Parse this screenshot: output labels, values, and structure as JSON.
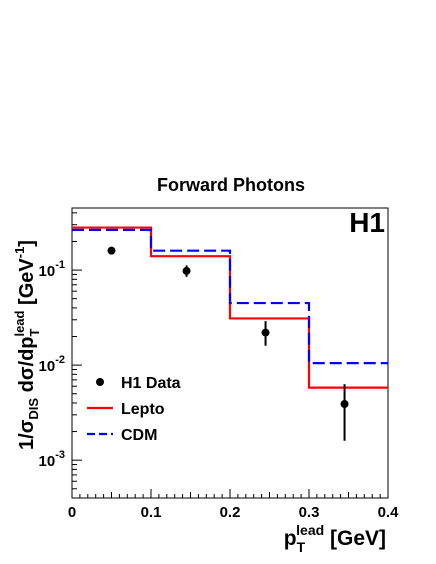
{
  "chart_data": {
    "type": "histogram",
    "title": "Forward Photons",
    "experiment_label": "H1",
    "xlabel": {
      "main": "p",
      "sub": "T",
      "sup": "lead",
      "unit": " [GeV]"
    },
    "ylabel": {
      "pre": "1/σ",
      "pre_sub": "DIS",
      "mid": " dσ/dp",
      "sub": "T",
      "sup": "lead",
      "unit_pre": " [GeV",
      "unit_sup": "-1",
      "unit_post": "]"
    },
    "xlim": [
      0,
      0.4
    ],
    "ylim": [
      0.0004,
      0.45
    ],
    "yscale": "log",
    "x_ticks": [
      "0",
      "0.1",
      "0.2",
      "0.3",
      "0.4"
    ],
    "y_ticks": [
      {
        "value": 0.1,
        "base": "10",
        "exp": "-1"
      },
      {
        "value": 0.01,
        "base": "10",
        "exp": "-2"
      },
      {
        "value": 0.001,
        "base": "10",
        "exp": "-3"
      }
    ],
    "bin_edges": [
      0,
      0.1,
      0.2,
      0.3,
      0.4
    ],
    "series": [
      {
        "name": "H1 Data",
        "style": "points",
        "color": "#000000",
        "x": [
          0.05,
          0.145,
          0.245,
          0.345
        ],
        "y": [
          0.16,
          0.098,
          0.022,
          0.0039
        ],
        "yerr_low": [
          0.15,
          0.085,
          0.016,
          0.0016
        ],
        "yerr_high": [
          0.17,
          0.112,
          0.029,
          0.0063
        ]
      },
      {
        "name": "Lepto",
        "style": "solid-step",
        "color": "#ff0000",
        "values": [
          0.28,
          0.14,
          0.031,
          0.0058
        ]
      },
      {
        "name": "CDM",
        "style": "dashed-step",
        "color": "#0000ff",
        "values": [
          0.265,
          0.16,
          0.045,
          0.0105
        ]
      }
    ],
    "legend_position": "bottom-left"
  }
}
